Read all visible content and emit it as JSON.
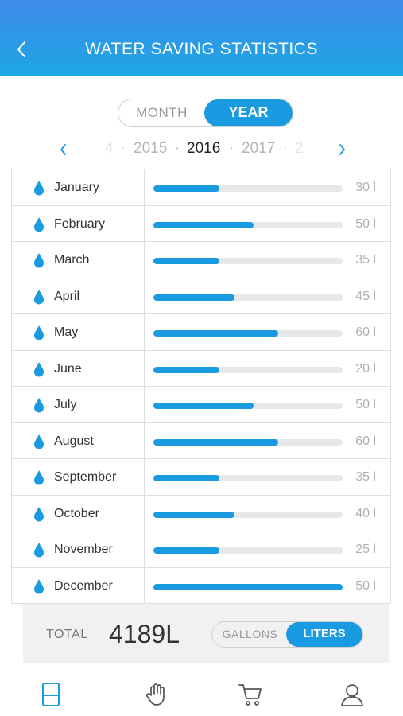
{
  "header": {
    "title": "WATER SAVING STATISTICS"
  },
  "period": {
    "month_label": "MONTH",
    "year_label": "YEAR",
    "selected": "YEAR"
  },
  "years": {
    "far_left": "4",
    "prev": "2015",
    "selected": "2016",
    "next": "2017",
    "far_right": "2"
  },
  "stats": [
    {
      "month": "January",
      "value": "30 l",
      "fill": 0.35
    },
    {
      "month": "February",
      "value": "50 l",
      "fill": 0.53
    },
    {
      "month": "March",
      "value": "35 l",
      "fill": 0.35
    },
    {
      "month": "April",
      "value": "45 l",
      "fill": 0.43
    },
    {
      "month": "May",
      "value": "60 l",
      "fill": 0.66
    },
    {
      "month": "June",
      "value": "20 l",
      "fill": 0.35
    },
    {
      "month": "July",
      "value": "50 l",
      "fill": 0.53
    },
    {
      "month": "August",
      "value": "60 l",
      "fill": 0.66
    },
    {
      "month": "September",
      "value": "35 l",
      "fill": 0.35
    },
    {
      "month": "October",
      "value": "40 l",
      "fill": 0.43
    },
    {
      "month": "November",
      "value": "25 l",
      "fill": 0.35
    },
    {
      "month": "December",
      "value": "50 l",
      "fill": 1.0
    }
  ],
  "summary": {
    "total_label": "TOTAL",
    "total_value": "4189L"
  },
  "units": {
    "gallons_label": "GALLONS",
    "liters_label": "LITERS",
    "selected": "LITERS"
  },
  "tabbar": {
    "tabs": [
      "statistics-icon",
      "hand-icon",
      "cart-icon",
      "profile-icon"
    ],
    "active": "statistics-icon"
  },
  "colors": {
    "accent": "#1a9ae0",
    "header_top": "#3f8bea",
    "header_bottom": "#1ca7e3",
    "track": "#e6e8ea"
  }
}
